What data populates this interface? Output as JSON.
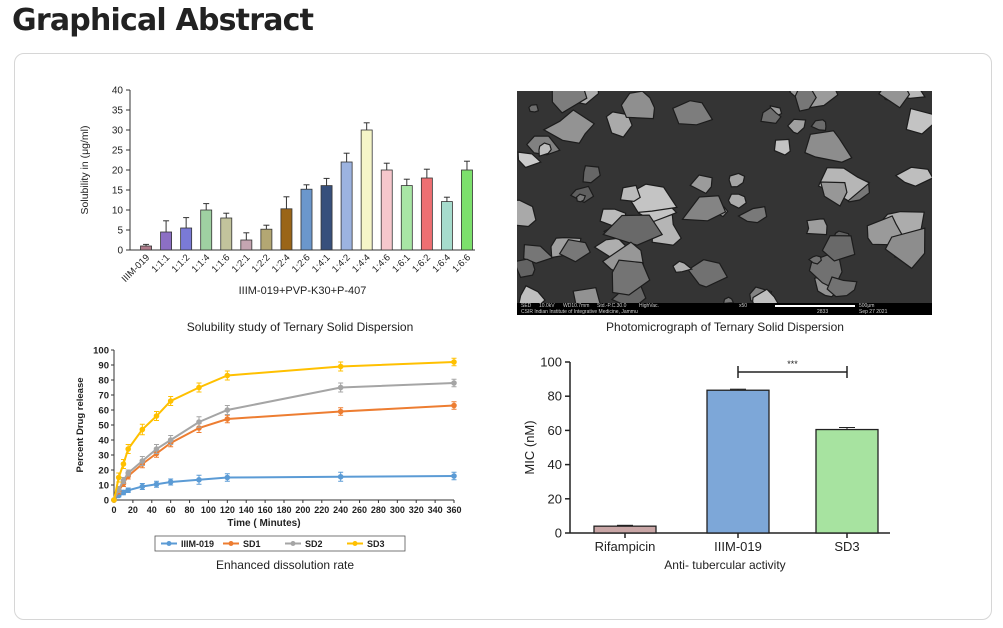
{
  "page": {
    "heading": "Graphical Abstract"
  },
  "panels": {
    "solubility": {
      "caption": "Solubility study of Ternary Solid Dispersion"
    },
    "sem": {
      "caption": "Photomicrograph of Ternary Solid Dispersion",
      "footer": {
        "detector": "SED",
        "voltage": "10.0kV",
        "wd": "WD10.7mm",
        "mode": "Std.-P.C.30.0",
        "vac": "HighVac.",
        "mag": "x50",
        "scale": "500μm",
        "counter": "2833",
        "date": "Sep 27 2021",
        "institute": "CSIR Indian Institute of Integrative Medicine, Jammu"
      }
    },
    "dissolution": {
      "caption": "Enhanced dissolution rate"
    },
    "mic": {
      "caption": "Anti- tubercular activity"
    }
  },
  "chart_data": [
    {
      "type": "bar",
      "ylabel": "Solubility in (μg/ml)",
      "xlabel": "IIIM-019+PVP-K30+P-407",
      "ylim": [
        0,
        40
      ],
      "yticks": [
        0,
        5,
        10,
        15,
        20,
        25,
        30,
        35,
        40
      ],
      "categories": [
        "IIIM-019",
        "1:1:1",
        "1:1:2",
        "1:1:4",
        "1:1:6",
        "1:2:1",
        "1:2:2",
        "1:2:4",
        "1:2:6",
        "1:4:1",
        "1:4:2",
        "1:4:4",
        "1:4:6",
        "1:6:1",
        "1:6:2",
        "1:6:4",
        "1:6:6"
      ],
      "values": [
        1,
        4.5,
        5.5,
        10,
        8,
        2.5,
        5.2,
        10.3,
        15.2,
        16.1,
        22,
        30,
        20,
        16.1,
        18,
        12.1,
        20
      ],
      "errors": [
        0.4,
        2.8,
        2.6,
        1.6,
        1.2,
        1.8,
        1.0,
        3.0,
        1.1,
        1.8,
        2.2,
        1.8,
        1.7,
        1.6,
        2.2,
        1.1,
        2.2
      ],
      "colors": [
        "#b07c8c",
        "#8c6fc4",
        "#7a7ad6",
        "#9fd0a2",
        "#c2c39c",
        "#c5a5b1",
        "#b3a773",
        "#9a6518",
        "#6b97cc",
        "#37507c",
        "#9cb3e0",
        "#f5f5c8",
        "#f6c7cc",
        "#a8e6a5",
        "#ee6f72",
        "#a6dccd",
        "#7ce06c"
      ],
      "grid": false
    },
    {
      "type": "line",
      "ylabel": "Percent Drug release",
      "xlabel": "Time ( Minutes)",
      "xlim": [
        0,
        360
      ],
      "ylim": [
        0,
        100
      ],
      "xticks": [
        0,
        20,
        40,
        60,
        80,
        100,
        120,
        140,
        160,
        180,
        200,
        220,
        240,
        260,
        280,
        300,
        320,
        340,
        360
      ],
      "yticks": [
        0,
        10,
        20,
        30,
        40,
        50,
        60,
        70,
        80,
        90,
        100
      ],
      "legend_position": "bottom",
      "series": [
        {
          "name": "IIIM-019",
          "color": "#5b9bd5",
          "x": [
            0,
            5,
            10,
            15,
            30,
            45,
            60,
            90,
            120,
            240,
            360
          ],
          "y": [
            0,
            3,
            5,
            6.5,
            9,
            10.5,
            12,
            13.5,
            15,
            15.5,
            16
          ],
          "err": [
            0,
            1,
            1.5,
            1.5,
            2,
            2,
            2,
            3,
            2.5,
            3,
            2.5
          ]
        },
        {
          "name": "SD1",
          "color": "#ed7d31",
          "x": [
            0,
            5,
            10,
            15,
            30,
            45,
            60,
            90,
            120,
            240,
            360
          ],
          "y": [
            0,
            6,
            11,
            16,
            24,
            31,
            38,
            48,
            54,
            59,
            63
          ],
          "err": [
            0,
            2,
            2,
            2,
            2.5,
            2.5,
            2.5,
            3,
            2.5,
            2.5,
            2.5
          ]
        },
        {
          "name": "SD2",
          "color": "#a5a5a5",
          "x": [
            0,
            5,
            10,
            15,
            30,
            45,
            60,
            90,
            120,
            240,
            360
          ],
          "y": [
            0,
            7,
            13,
            18,
            26,
            34,
            40,
            52,
            60,
            75,
            78
          ],
          "err": [
            0,
            2,
            2,
            2,
            3,
            3,
            3,
            3.5,
            3,
            3,
            2.5
          ]
        },
        {
          "name": "SD3",
          "color": "#ffc000",
          "x": [
            0,
            5,
            10,
            15,
            30,
            45,
            60,
            90,
            120,
            240,
            360
          ],
          "y": [
            0,
            15,
            24,
            34,
            47,
            56,
            66,
            75,
            83,
            89,
            92
          ],
          "err": [
            0,
            3,
            3,
            3,
            3.5,
            3,
            3,
            3,
            3,
            3,
            2.5
          ]
        }
      ]
    },
    {
      "type": "bar",
      "ylabel": "MIC (nM)",
      "xlabel": "",
      "ylim": [
        0,
        100
      ],
      "yticks": [
        0,
        20,
        40,
        60,
        80,
        100
      ],
      "categories": [
        "Rifampicin",
        "IIIM-019",
        "SD3"
      ],
      "values": [
        4,
        83.5,
        60.5
      ],
      "errors": [
        0.5,
        0.6,
        1.2
      ],
      "colors": [
        "#c9a6a6",
        "#7da7d8",
        "#a7e3a0"
      ],
      "significance": {
        "from": "IIIM-019",
        "to": "SD3",
        "label": "***"
      },
      "grid": false
    }
  ]
}
